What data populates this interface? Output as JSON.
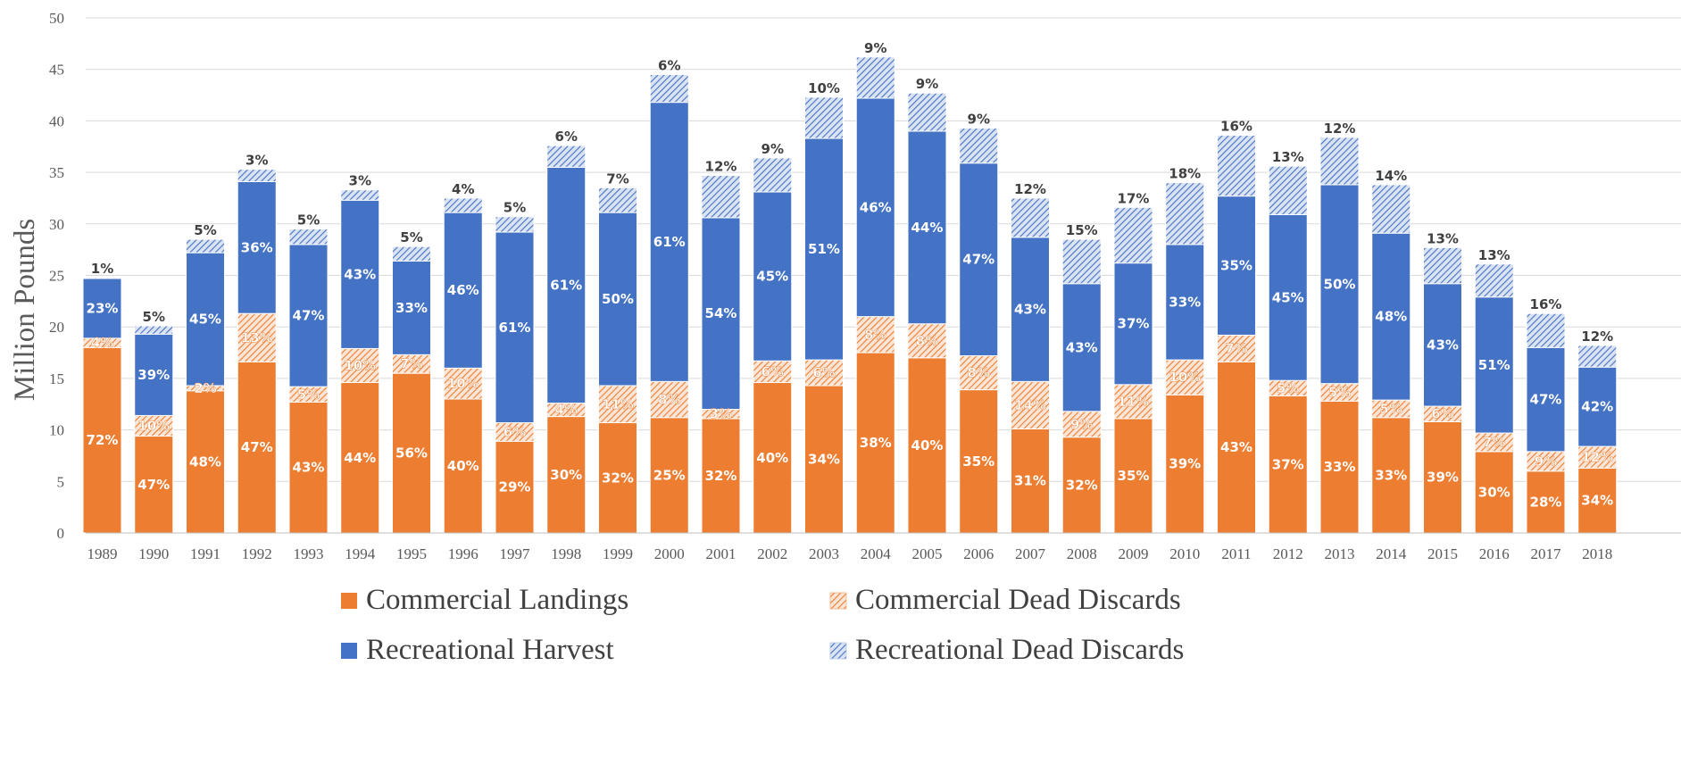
{
  "chart_data": {
    "type": "bar",
    "stacked": true,
    "title": "",
    "xlabel": "",
    "ylabel": "Million Pounds",
    "ylim": [
      0,
      50
    ],
    "yticks": [
      0,
      5,
      10,
      15,
      20,
      25,
      30,
      35,
      40,
      45,
      50
    ],
    "grid": "horizontal",
    "legend_position": "bottom",
    "categories": [
      "1989",
      "1990",
      "1991",
      "1992",
      "1993",
      "1994",
      "1995",
      "1996",
      "1997",
      "1998",
      "1999",
      "2000",
      "2001",
      "2002",
      "2003",
      "2004",
      "2005",
      "2006",
      "2007",
      "2008",
      "2009",
      "2010",
      "2011",
      "2012",
      "2013",
      "2014",
      "2015",
      "2016",
      "2017",
      "2018"
    ],
    "series": [
      {
        "name": "Commercial Landings",
        "color": "#ED7D31",
        "pattern": "solid",
        "values": [
          18.0,
          9.4,
          13.8,
          16.6,
          12.7,
          14.6,
          15.5,
          13.0,
          8.9,
          11.3,
          10.7,
          11.2,
          11.1,
          14.6,
          14.3,
          17.5,
          17.0,
          13.9,
          10.1,
          9.3,
          11.1,
          13.4,
          16.6,
          13.3,
          12.8,
          11.2,
          10.8,
          7.9,
          6.0,
          6.3
        ],
        "labels": [
          "72%",
          "47%",
          "48%",
          "47%",
          "43%",
          "44%",
          "56%",
          "40%",
          "29%",
          "30%",
          "32%",
          "25%",
          "32%",
          "40%",
          "34%",
          "38%",
          "40%",
          "35%",
          "31%",
          "32%",
          "35%",
          "39%",
          "43%",
          "37%",
          "33%",
          "33%",
          "39%",
          "30%",
          "28%",
          "34%"
        ]
      },
      {
        "name": "Commercial Dead Discards",
        "color": "#F4B183",
        "pattern": "hatch-orange",
        "values": [
          0.9,
          2.0,
          0.5,
          4.7,
          1.5,
          3.3,
          1.8,
          3.0,
          1.8,
          1.3,
          3.6,
          3.5,
          0.9,
          2.1,
          2.5,
          3.5,
          3.3,
          3.3,
          4.6,
          2.5,
          3.3,
          3.4,
          2.6,
          1.5,
          1.7,
          1.7,
          1.5,
          1.8,
          1.9,
          2.1
        ],
        "labels": [
          "4%",
          "10%",
          "2%",
          "13%",
          "5%",
          "10%",
          "7%",
          "10%",
          "6%",
          "4%",
          "11%",
          "8%",
          "3%",
          "6%",
          "6%",
          "8%",
          "8%",
          "8%",
          "14%",
          "9%",
          "11%",
          "10%",
          "7%",
          "5%",
          "5%",
          "5%",
          "6%",
          "7%",
          "9%",
          "12%"
        ]
      },
      {
        "name": "Recreational Harvest",
        "color": "#4472C4",
        "pattern": "solid",
        "values": [
          5.8,
          7.9,
          12.9,
          12.8,
          13.8,
          14.4,
          9.1,
          15.1,
          18.5,
          22.9,
          16.8,
          27.1,
          18.6,
          16.4,
          21.5,
          21.2,
          18.7,
          18.7,
          14.0,
          12.4,
          11.8,
          11.2,
          13.5,
          16.1,
          19.3,
          16.2,
          11.9,
          13.2,
          10.1,
          7.7
        ],
        "labels": [
          "23%",
          "39%",
          "45%",
          "36%",
          "47%",
          "43%",
          "33%",
          "46%",
          "61%",
          "61%",
          "50%",
          "61%",
          "54%",
          "45%",
          "51%",
          "46%",
          "44%",
          "47%",
          "43%",
          "43%",
          "37%",
          "33%",
          "35%",
          "45%",
          "50%",
          "48%",
          "43%",
          "51%",
          "47%",
          "42%"
        ]
      },
      {
        "name": "Recreational Dead Discards",
        "color": "#B4C7E7",
        "pattern": "hatch-blue",
        "values": [
          0.1,
          0.8,
          1.3,
          1.2,
          1.5,
          1.0,
          1.4,
          1.4,
          1.5,
          2.1,
          2.4,
          2.7,
          4.1,
          3.3,
          4.0,
          4.0,
          3.7,
          3.4,
          3.8,
          4.3,
          5.4,
          6.0,
          5.9,
          4.7,
          4.6,
          4.7,
          3.5,
          3.2,
          3.3,
          2.1
        ],
        "labels": [
          "1%",
          "5%",
          "5%",
          "3%",
          "5%",
          "3%",
          "5%",
          "4%",
          "5%",
          "6%",
          "7%",
          "6%",
          "12%",
          "9%",
          "10%",
          "9%",
          "9%",
          "9%",
          "12%",
          "15%",
          "17%",
          "18%",
          "16%",
          "13%",
          "12%",
          "14%",
          "13%",
          "13%",
          "16%",
          "12%"
        ]
      }
    ]
  }
}
